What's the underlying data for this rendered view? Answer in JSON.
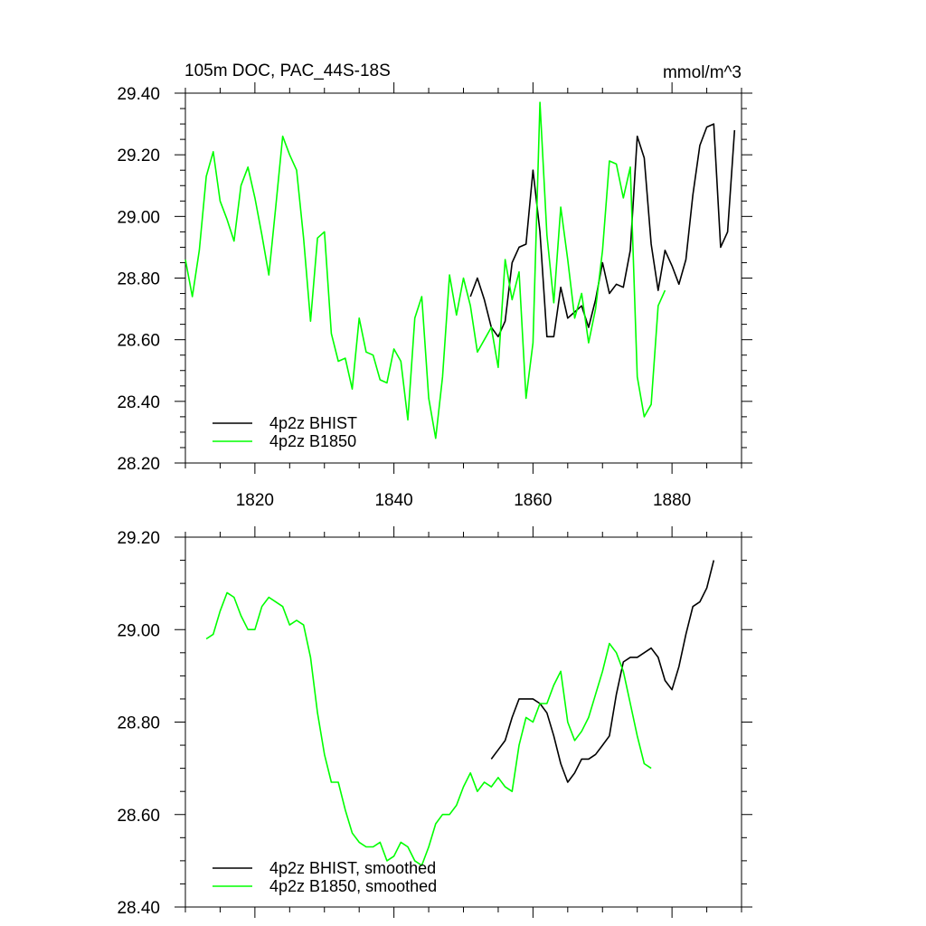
{
  "chart_data": [
    {
      "type": "line",
      "title": "105m DOC, PAC_44S-18S",
      "units": "mmol/m^3",
      "xlim": [
        1810,
        1890
      ],
      "ylim": [
        28.2,
        29.4
      ],
      "x_ticks": [
        1820,
        1840,
        1860,
        1880
      ],
      "x_tick_labels": [
        "1820",
        "1840",
        "1860",
        "1880"
      ],
      "y_ticks": [
        28.2,
        28.4,
        28.6,
        28.8,
        29.0,
        29.2,
        29.4
      ],
      "y_tick_labels": [
        "28.20",
        "28.40",
        "28.60",
        "28.80",
        "29.00",
        "29.20",
        "29.40"
      ],
      "legend_position": "bottom-left",
      "series": [
        {
          "name": "4p2z BHIST",
          "color": "#000000",
          "x": [
            1851,
            1852,
            1853,
            1854,
            1855,
            1856,
            1857,
            1858,
            1859,
            1860,
            1861,
            1862,
            1863,
            1864,
            1865,
            1866,
            1867,
            1868,
            1869,
            1870,
            1871,
            1872,
            1873,
            1874,
            1875,
            1876,
            1877,
            1878,
            1879,
            1880,
            1881,
            1882,
            1883,
            1884,
            1885,
            1886,
            1887,
            1888,
            1889
          ],
          "values": [
            28.74,
            28.8,
            28.73,
            28.64,
            28.61,
            28.66,
            28.85,
            28.9,
            28.91,
            29.15,
            28.95,
            28.61,
            28.61,
            28.77,
            28.67,
            28.69,
            28.71,
            28.64,
            28.73,
            28.85,
            28.75,
            28.78,
            28.77,
            28.89,
            29.26,
            29.19,
            28.91,
            28.76,
            28.89,
            28.84,
            28.78,
            28.86,
            29.07,
            29.23,
            29.29,
            29.3,
            28.9,
            28.95,
            29.28
          ]
        },
        {
          "name": "4p2z B1850",
          "color": "#00ff00",
          "x": [
            1810,
            1811,
            1812,
            1813,
            1814,
            1815,
            1816,
            1817,
            1818,
            1819,
            1820,
            1821,
            1822,
            1823,
            1824,
            1825,
            1826,
            1827,
            1828,
            1829,
            1830,
            1831,
            1832,
            1833,
            1834,
            1835,
            1836,
            1837,
            1838,
            1839,
            1840,
            1841,
            1842,
            1843,
            1844,
            1845,
            1846,
            1847,
            1848,
            1849,
            1850,
            1851,
            1852,
            1853,
            1854,
            1855,
            1856,
            1857,
            1858,
            1859,
            1860,
            1861,
            1862,
            1863,
            1864,
            1865,
            1866,
            1867,
            1868,
            1869,
            1870,
            1871,
            1872,
            1873,
            1874,
            1875,
            1876,
            1877,
            1878,
            1879
          ],
          "values": [
            28.86,
            28.74,
            28.89,
            29.13,
            29.21,
            29.05,
            28.99,
            28.92,
            29.1,
            29.16,
            29.06,
            28.94,
            28.81,
            29.03,
            29.26,
            29.2,
            29.15,
            28.93,
            28.66,
            28.93,
            28.95,
            28.62,
            28.53,
            28.54,
            28.44,
            28.67,
            28.56,
            28.55,
            28.47,
            28.46,
            28.57,
            28.53,
            28.34,
            28.67,
            28.74,
            28.41,
            28.28,
            28.48,
            28.81,
            28.68,
            28.8,
            28.71,
            28.56,
            28.6,
            28.64,
            28.51,
            28.86,
            28.73,
            28.82,
            28.41,
            28.59,
            29.37,
            28.94,
            28.72,
            29.03,
            28.86,
            28.67,
            28.75,
            28.59,
            28.7,
            28.89,
            29.18,
            29.17,
            29.06,
            29.16,
            28.48,
            28.35,
            28.39,
            28.71,
            28.76
          ]
        }
      ]
    },
    {
      "type": "line",
      "title": "",
      "xlim": [
        1810,
        1890
      ],
      "ylim": [
        28.4,
        29.2
      ],
      "x_ticks": [
        1820,
        1840,
        1860,
        1880
      ],
      "x_tick_labels": [],
      "y_ticks": [
        28.4,
        28.6,
        28.8,
        29.0,
        29.2
      ],
      "y_tick_labels": [
        "28.40",
        "28.60",
        "28.80",
        "29.00",
        "29.20"
      ],
      "legend_position": "bottom-left",
      "series": [
        {
          "name": "4p2z BHIST, smoothed",
          "color": "#000000",
          "x": [
            1854,
            1855,
            1856,
            1857,
            1858,
            1859,
            1860,
            1861,
            1862,
            1863,
            1864,
            1865,
            1866,
            1867,
            1868,
            1869,
            1870,
            1871,
            1872,
            1873,
            1874,
            1875,
            1876,
            1877,
            1878,
            1879,
            1880,
            1881,
            1882,
            1883,
            1884,
            1885,
            1886
          ],
          "values": [
            28.72,
            28.74,
            28.76,
            28.81,
            28.85,
            28.85,
            28.85,
            28.84,
            28.82,
            28.77,
            28.71,
            28.67,
            28.69,
            28.72,
            28.72,
            28.73,
            28.75,
            28.77,
            28.86,
            28.93,
            28.94,
            28.94,
            28.95,
            28.96,
            28.94,
            28.89,
            28.87,
            28.92,
            28.99,
            29.05,
            29.06,
            29.09,
            29.15
          ]
        },
        {
          "name": "4p2z B1850, smoothed",
          "color": "#00ff00",
          "x": [
            1813,
            1814,
            1815,
            1816,
            1817,
            1818,
            1819,
            1820,
            1821,
            1822,
            1823,
            1824,
            1825,
            1826,
            1827,
            1828,
            1829,
            1830,
            1831,
            1832,
            1833,
            1834,
            1835,
            1836,
            1837,
            1838,
            1839,
            1840,
            1841,
            1842,
            1843,
            1844,
            1845,
            1846,
            1847,
            1848,
            1849,
            1850,
            1851,
            1852,
            1853,
            1854,
            1855,
            1856,
            1857,
            1858,
            1859,
            1860,
            1861,
            1862,
            1863,
            1864,
            1865,
            1866,
            1867,
            1868,
            1869,
            1870,
            1871,
            1872,
            1873,
            1874,
            1875,
            1876,
            1877
          ],
          "values": [
            28.98,
            28.99,
            29.04,
            29.08,
            29.07,
            29.03,
            29.0,
            29.0,
            29.05,
            29.07,
            29.06,
            29.05,
            29.01,
            29.02,
            29.01,
            28.94,
            28.82,
            28.73,
            28.67,
            28.67,
            28.61,
            28.56,
            28.54,
            28.53,
            28.53,
            28.54,
            28.5,
            28.51,
            28.54,
            28.53,
            28.5,
            28.49,
            28.53,
            28.58,
            28.6,
            28.6,
            28.62,
            28.66,
            28.69,
            28.65,
            28.67,
            28.66,
            28.68,
            28.66,
            28.65,
            28.75,
            28.81,
            28.8,
            28.84,
            28.84,
            28.88,
            28.91,
            28.8,
            28.76,
            28.78,
            28.81,
            28.86,
            28.91,
            28.97,
            28.95,
            28.91,
            28.84,
            28.77,
            28.71,
            28.7
          ]
        }
      ]
    }
  ]
}
